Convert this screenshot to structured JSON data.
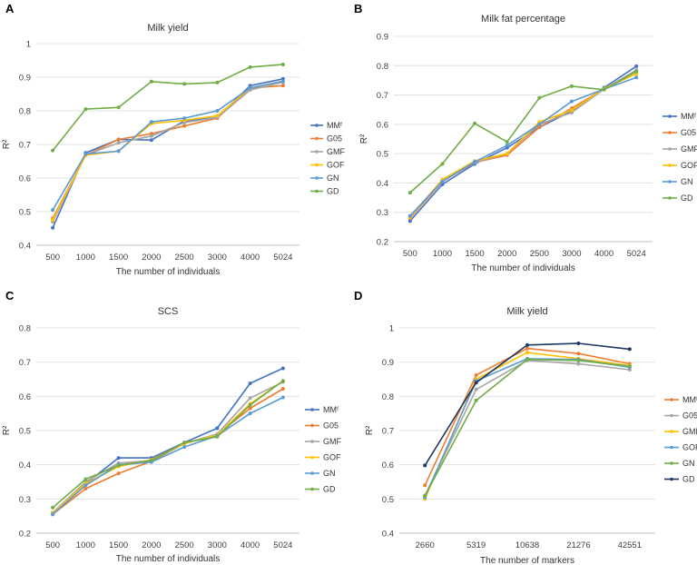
{
  "figure": {
    "panels": [
      "A",
      "B",
      "C",
      "D"
    ]
  },
  "chart_data": [
    {
      "panel": "A",
      "type": "line",
      "title": "Milk yield",
      "xlabel": "The number of individuals",
      "ylabel": "R²",
      "categories": [
        "500",
        "1000",
        "1500",
        "2000",
        "2500",
        "3000",
        "4000",
        "5024"
      ],
      "ylim": [
        0.4,
        1.0
      ],
      "yticks": [
        "0.4",
        "0.5",
        "0.6",
        "0.7",
        "0.8",
        "0.9",
        "1"
      ],
      "legend_position": "right",
      "series": [
        {
          "name": "MMᶠ",
          "color": "#4472c4",
          "values": [
            0.452,
            0.675,
            0.715,
            0.713,
            0.77,
            0.78,
            0.875,
            0.895
          ]
        },
        {
          "name": "G05",
          "color": "#ed7d31",
          "values": [
            0.48,
            0.668,
            0.715,
            0.732,
            0.755,
            0.778,
            0.868,
            0.875
          ]
        },
        {
          "name": "GMF",
          "color": "#a5a5a5",
          "values": [
            0.47,
            0.668,
            0.705,
            0.725,
            0.765,
            0.78,
            0.862,
            0.885
          ]
        },
        {
          "name": "GOF",
          "color": "#ffc000",
          "values": [
            0.475,
            0.668,
            0.68,
            0.762,
            0.772,
            0.785,
            0.868,
            0.888
          ]
        },
        {
          "name": "GN",
          "color": "#5b9bd5",
          "values": [
            0.505,
            0.672,
            0.68,
            0.767,
            0.778,
            0.8,
            0.868,
            0.888
          ]
        },
        {
          "name": "GD",
          "color": "#70ad47",
          "values": [
            0.682,
            0.805,
            0.81,
            0.887,
            0.88,
            0.884,
            0.93,
            0.938
          ]
        }
      ]
    },
    {
      "panel": "B",
      "type": "line",
      "title": "Milk fat percentage",
      "xlabel": "The number of individuals",
      "ylabel": "R²",
      "categories": [
        "500",
        "1000",
        "1500",
        "2000",
        "2500",
        "3000",
        "4000",
        "5024"
      ],
      "ylim": [
        0.2,
        0.9
      ],
      "yticks": [
        "0.2",
        "0.3",
        "0.4",
        "0.5",
        "0.6",
        "0.7",
        "0.8",
        "0.9"
      ],
      "legend_position": "right",
      "series": [
        {
          "name": "MMᶠ",
          "color": "#4472c4",
          "values": [
            0.27,
            0.395,
            0.465,
            0.52,
            0.59,
            0.645,
            0.725,
            0.798
          ]
        },
        {
          "name": "G05",
          "color": "#ed7d31",
          "values": [
            0.28,
            0.405,
            0.47,
            0.495,
            0.59,
            0.655,
            0.72,
            0.78
          ]
        },
        {
          "name": "GMF",
          "color": "#a5a5a5",
          "values": [
            0.282,
            0.41,
            0.47,
            0.5,
            0.6,
            0.64,
            0.72,
            0.785
          ]
        },
        {
          "name": "GOF",
          "color": "#ffc000",
          "values": [
            0.283,
            0.412,
            0.475,
            0.5,
            0.608,
            0.648,
            0.722,
            0.772
          ]
        },
        {
          "name": "GN",
          "color": "#5b9bd5",
          "values": [
            0.288,
            0.405,
            0.472,
            0.528,
            0.6,
            0.678,
            0.72,
            0.76
          ]
        },
        {
          "name": "GD",
          "color": "#70ad47",
          "values": [
            0.367,
            0.465,
            0.603,
            0.54,
            0.69,
            0.73,
            0.718,
            0.78
          ]
        }
      ]
    },
    {
      "panel": "C",
      "type": "line",
      "title": "SCS",
      "xlabel": "The number of individuals",
      "ylabel": "R²",
      "categories": [
        "500",
        "1000",
        "1500",
        "2000",
        "2500",
        "3000",
        "4000",
        "5024"
      ],
      "ylim": [
        0.2,
        0.8
      ],
      "yticks": [
        "0.2",
        "0.3",
        "0.4",
        "0.5",
        "0.6",
        "0.7",
        "0.8"
      ],
      "legend_position": "right",
      "series": [
        {
          "name": "MMᶠ",
          "color": "#4472c4",
          "values": [
            0.26,
            0.345,
            0.42,
            0.42,
            0.465,
            0.507,
            0.638,
            0.682
          ]
        },
        {
          "name": "G05",
          "color": "#ed7d31",
          "values": [
            0.255,
            0.33,
            0.375,
            0.41,
            0.462,
            0.488,
            0.565,
            0.622
          ]
        },
        {
          "name": "GMF",
          "color": "#a5a5a5",
          "values": [
            0.26,
            0.35,
            0.405,
            0.412,
            0.462,
            0.49,
            0.595,
            0.642
          ]
        },
        {
          "name": "GOF",
          "color": "#ffc000",
          "values": [
            0.258,
            0.345,
            0.395,
            0.415,
            0.462,
            0.487,
            0.578,
            0.645
          ]
        },
        {
          "name": "GN",
          "color": "#5b9bd5",
          "values": [
            0.255,
            0.34,
            0.4,
            0.408,
            0.452,
            0.485,
            0.55,
            0.597
          ]
        },
        {
          "name": "GD",
          "color": "#70ad47",
          "values": [
            0.275,
            0.358,
            0.398,
            0.413,
            0.465,
            0.482,
            0.575,
            0.645
          ]
        }
      ]
    },
    {
      "panel": "D",
      "type": "line",
      "title": "Milk yield",
      "xlabel": "The number of markers",
      "ylabel": "R²",
      "categories": [
        "2660",
        "5319",
        "10638",
        "21276",
        "42551"
      ],
      "ylim": [
        0.4,
        1.0
      ],
      "yticks": [
        "0.4",
        "0.5",
        "0.6",
        "0.7",
        "0.8",
        "0.9",
        "1"
      ],
      "legend_position": "right",
      "series": [
        {
          "name": "MMᶠ",
          "color": "#ed7d31",
          "values": [
            0.54,
            0.862,
            0.94,
            0.925,
            0.895
          ]
        },
        {
          "name": "G05",
          "color": "#a5a5a5",
          "values": [
            0.51,
            0.82,
            0.905,
            0.895,
            0.878
          ]
        },
        {
          "name": "GMF",
          "color": "#ffc000",
          "values": [
            0.5,
            0.85,
            0.928,
            0.91,
            0.89
          ]
        },
        {
          "name": "GOF",
          "color": "#5b9bd5",
          "values": [
            0.505,
            0.845,
            0.91,
            0.908,
            0.885
          ]
        },
        {
          "name": "GN",
          "color": "#70ad47",
          "values": [
            0.51,
            0.788,
            0.908,
            0.905,
            0.888
          ]
        },
        {
          "name": "GD",
          "color": "#1f3864",
          "values": [
            0.598,
            0.84,
            0.95,
            0.955,
            0.938
          ]
        }
      ]
    }
  ]
}
